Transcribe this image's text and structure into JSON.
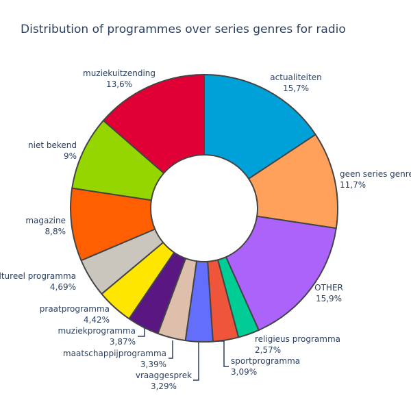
{
  "chart_data": {
    "type": "pie",
    "title": "Distribution of programmes over series genres for radio",
    "hole": 0.4,
    "direction": "clockwise",
    "sort": "none",
    "slices": [
      {
        "label": "actualiteiten",
        "value": 15.7,
        "value_text": "15,7%",
        "color": "#00a0d8"
      },
      {
        "label": "geen series genre",
        "value": 11.7,
        "value_text": "11,7%",
        "color": "#ffa15a"
      },
      {
        "label": "OTHER",
        "value": 15.9,
        "value_text": "15,9%",
        "color": "#ab63fa"
      },
      {
        "label": "religieus programma",
        "value": 2.57,
        "value_text": "2,57%",
        "color": "#00cc96"
      },
      {
        "label": "sportprogramma",
        "value": 3.09,
        "value_text": "3,09%",
        "color": "#ef553b"
      },
      {
        "label": "vraaggesprek",
        "value": 3.29,
        "value_text": "3,29%",
        "color": "#636efa"
      },
      {
        "label": "maatschappijprogramma",
        "value": 3.39,
        "value_text": "3,39%",
        "color": "#debfac"
      },
      {
        "label": "muziekprogramma",
        "value": 3.87,
        "value_text": "3,87%",
        "color": "#5a1782"
      },
      {
        "label": "praatprogramma",
        "value": 4.42,
        "value_text": "4,42%",
        "color": "#ffe600"
      },
      {
        "label": "cultureel programma",
        "value": 4.69,
        "value_text": "4,69%",
        "color": "#cac6bd"
      },
      {
        "label": "magazine",
        "value": 8.8,
        "value_text": "8,8%",
        "color": "#ff5f00"
      },
      {
        "label": "niet bekend",
        "value": 9,
        "value_text": "9%",
        "color": "#96d600"
      },
      {
        "label": "muziekuitzending",
        "value": 13.6,
        "value_text": "13,6%",
        "color": "#e00035"
      }
    ]
  }
}
